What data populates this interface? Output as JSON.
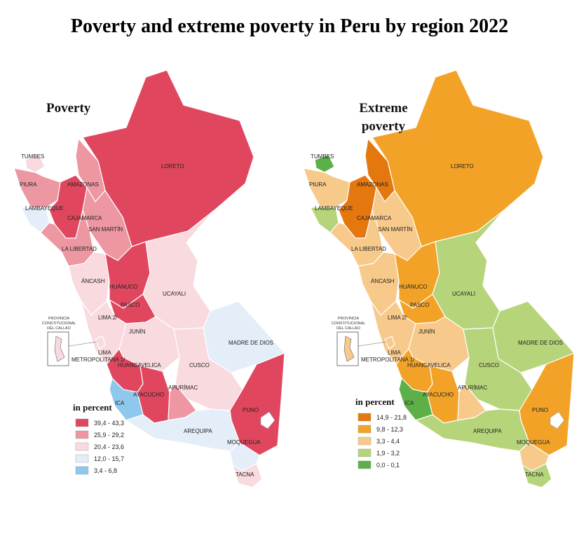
{
  "title": "Poverty and extreme poverty in Peru by region 2022",
  "maps": [
    {
      "id": "poverty",
      "title_lines": [
        "Poverty"
      ],
      "legend_title": "in percent",
      "legend": [
        {
          "range": "39,4 - 43,3",
          "color": "#e0475f"
        },
        {
          "range": "25,9 - 29,2",
          "color": "#ec97a2"
        },
        {
          "range": "20,4 - 23,6",
          "color": "#f8dadf"
        },
        {
          "range": "12,0 - 15,7",
          "color": "#e4eef8"
        },
        {
          "range": "3,4 - 6,8",
          "color": "#8ec8ec"
        }
      ],
      "regions": {
        "LORETO": 0,
        "AMAZONAS": 1,
        "TUMBES": 2,
        "PIURA": 1,
        "LAMBAYEQUE": 3,
        "CAJAMARCA": 0,
        "LA LIBERTAD": 1,
        "SAN MARTIN": 1,
        "ANCASH": 2,
        "HUANUCO": 0,
        "UCAYALI": 2,
        "PASCO": 0,
        "LIMA 2/": 2,
        "JUNIN": 2,
        "MADRE DE DIOS": 3,
        "HUANCAVELICA": 0,
        "CUSCO": 2,
        "AYACUCHO": 0,
        "APURIMAC": 1,
        "ICA": 4,
        "PUNO": 0,
        "AREQUIPA": 3,
        "MOQUEGUA": 3,
        "TACNA": 2,
        "CALLAO": 2
      }
    },
    {
      "id": "extreme",
      "title_lines": [
        "Extreme",
        "poverty"
      ],
      "legend_title": "in percent",
      "legend": [
        {
          "range": "14,9 - 21,8",
          "color": "#e5770f"
        },
        {
          "range": "9,8 - 12,3",
          "color": "#f2a327"
        },
        {
          "range": "3,3 - 4,4",
          "color": "#f7c98b"
        },
        {
          "range": "1,9 - 3,2",
          "color": "#b6d47a"
        },
        {
          "range": "0,0 - 0,1",
          "color": "#5daf48"
        }
      ],
      "regions": {
        "LORETO": 1,
        "AMAZONAS": 0,
        "TUMBES": 4,
        "PIURA": 2,
        "LAMBAYEQUE": 3,
        "CAJAMARCA": 0,
        "LA LIBERTAD": 2,
        "SAN MARTIN": 2,
        "ANCASH": 2,
        "HUANUCO": 1,
        "UCAYALI": 3,
        "PASCO": 1,
        "LIMA 2/": 2,
        "JUNIN": 2,
        "MADRE DE DIOS": 3,
        "HUANCAVELICA": 1,
        "CUSCO": 3,
        "AYACUCHO": 1,
        "APURIMAC": 2,
        "ICA": 4,
        "PUNO": 1,
        "AREQUIPA": 3,
        "MOQUEGUA": 2,
        "TACNA": 3,
        "CALLAO": 2
      }
    }
  ],
  "region_labels": {
    "TUMBES": "TUMBES",
    "PIURA": "PIURA",
    "LAMBAYEQUE": "LAMBAYEQUE",
    "AMAZONAS": "AMAZONAS",
    "CAJAMARCA": "CAJAMARCA",
    "LORETO": "LORETO",
    "SAN MARTIN": "SAN MARTÍN",
    "LA LIBERTAD": "LA LIBERTAD",
    "ANCASH": "ÁNCASH",
    "HUANUCO": "HUÁNUCO",
    "UCAYALI": "UCAYALI",
    "PASCO": "PASCO",
    "LIMA 2/": "LIMA 2/",
    "JUNIN": "JUNÍN",
    "MADRE DE DIOS": "MADRE DE DIOS",
    "CUSCO": "CUSCO",
    "HUANCAVELICA": "HUANCAVELICA",
    "AYACUCHO": "AYACUCHO",
    "APURIMAC": "APURÍMAC",
    "ICA": "ICA",
    "PUNO": "PUNO",
    "AREQUIPA": "AREQUIPA",
    "MOQUEGUA": "MOQUEGUA",
    "TACNA": "TACNA",
    "LIMA METRO": "LIMA METROPOLITANA 1/"
  },
  "callao_label": [
    "PROVINCIA",
    "CONSTITUCIONAL",
    "DEL CALLAO"
  ]
}
